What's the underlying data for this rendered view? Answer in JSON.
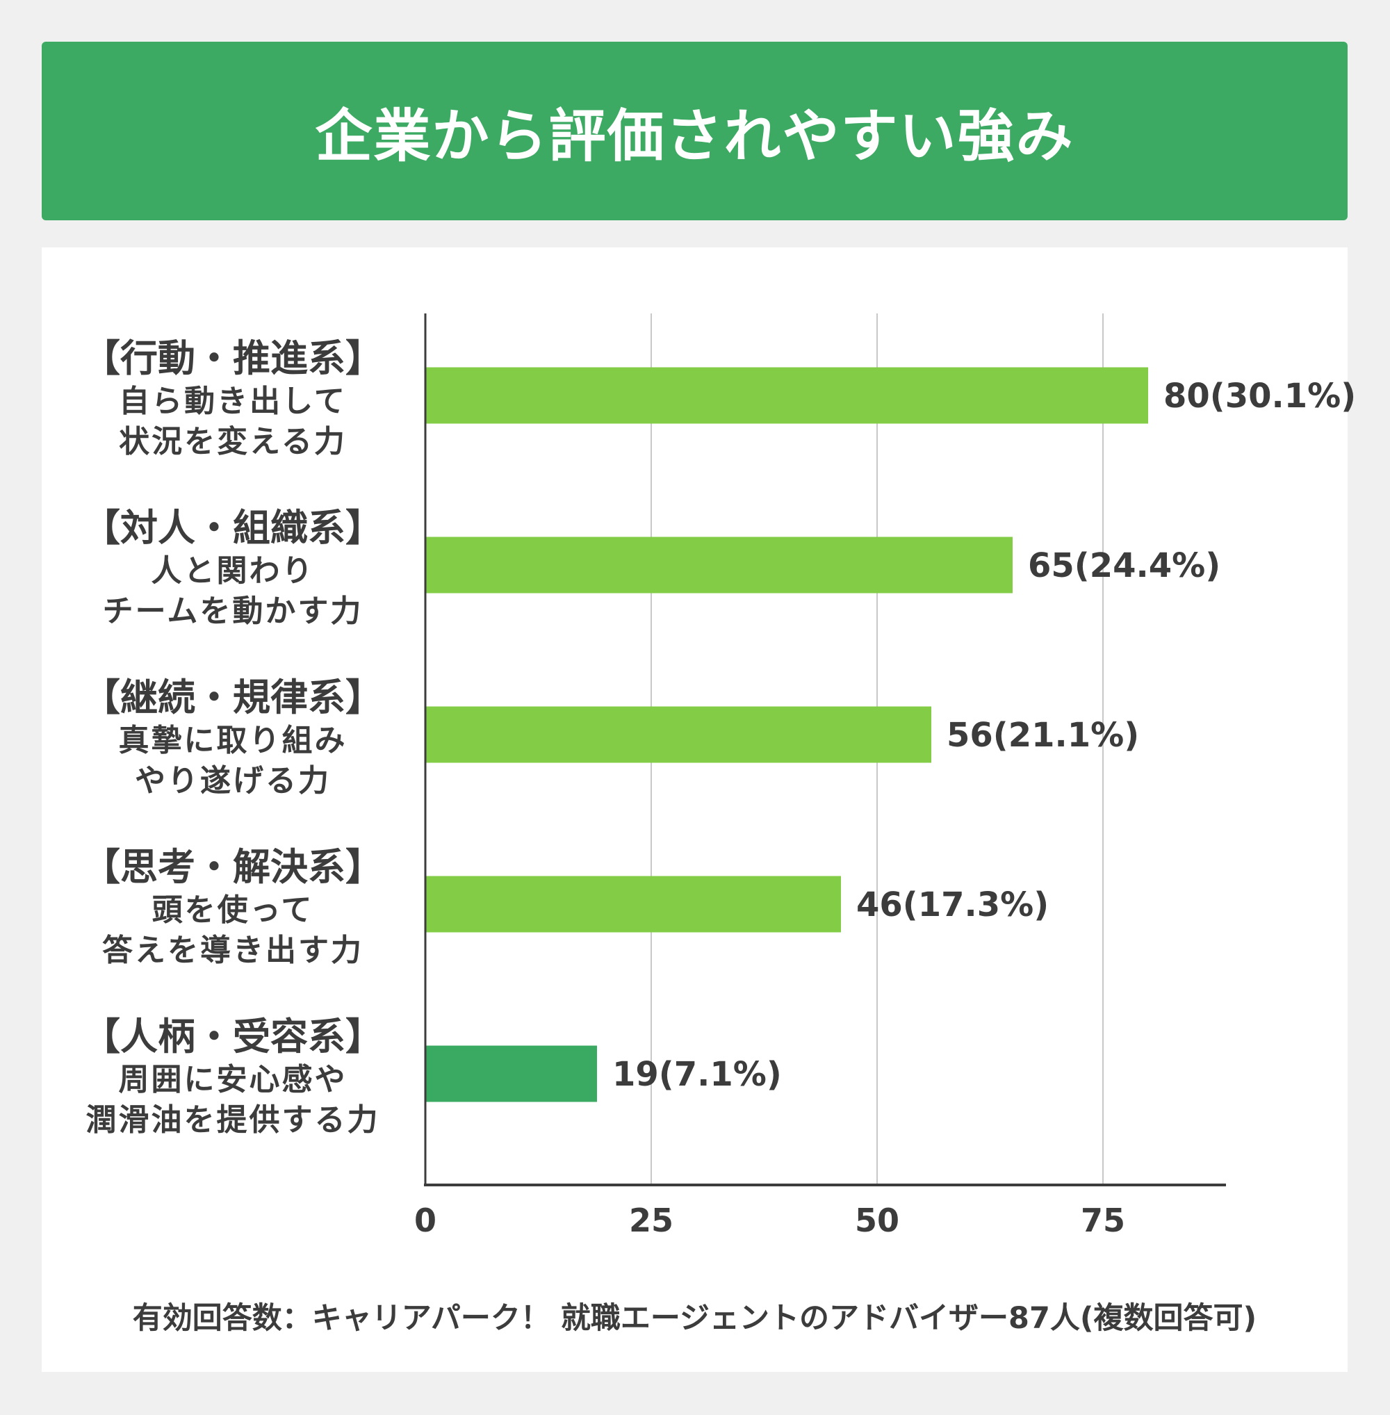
{
  "title": "企業から評価されやすい強み",
  "footnote": "有効回答数：キャリアパーク！ 就職エージェントのアドバイザー87人(複数回答可)",
  "colors": {
    "header": "#3daa64",
    "bar": "#82cc46",
    "bar_highlight": "#3aa962",
    "text": "#3c3c3c"
  },
  "chart_data": {
    "type": "bar",
    "orientation": "horizontal",
    "categories": [
      {
        "title": "【行動・推進系】",
        "lines": [
          "自ら動き出して",
          "状況を変える力"
        ]
      },
      {
        "title": "【対人・組織系】",
        "lines": [
          "人と関わり",
          "チームを動かす力"
        ]
      },
      {
        "title": "【継続・規律系】",
        "lines": [
          "真摯に取り組み",
          "やり遂げる力"
        ]
      },
      {
        "title": "【思考・解決系】",
        "lines": [
          "頭を使って",
          "答えを導き出す力"
        ]
      },
      {
        "title": "【人柄・受容系】",
        "lines": [
          "周囲に安心感や",
          "潤滑油を提供する力"
        ]
      }
    ],
    "values": [
      80,
      65,
      56,
      46,
      19
    ],
    "data_labels": [
      "80(30.1%)",
      "65(24.4%)",
      "56(21.1%)",
      "46(17.3%)",
      "19(7.1%)"
    ],
    "xlim": [
      0,
      89
    ],
    "xticks": [
      "0",
      "25",
      "50",
      "75"
    ],
    "grid": true
  }
}
